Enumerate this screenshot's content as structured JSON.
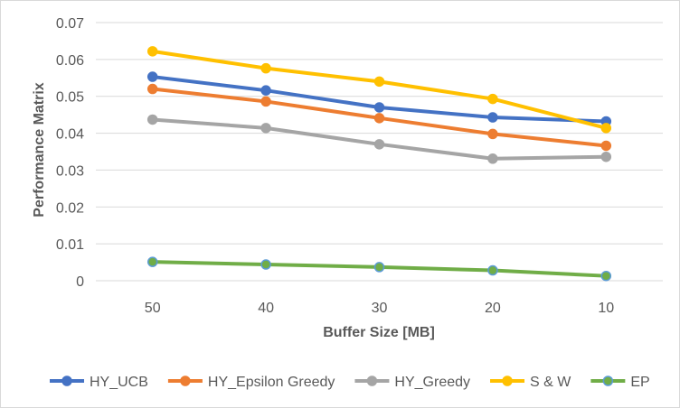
{
  "chart_data": {
    "type": "line",
    "title": "",
    "xlabel": "Buffer Size [MB]",
    "ylabel": "Performance Matrix",
    "categories": [
      "50",
      "40",
      "30",
      "20",
      "10"
    ],
    "ylim": [
      0,
      0.07
    ],
    "yticks": [
      "0",
      "0.01",
      "0.02",
      "0.03",
      "0.04",
      "0.05",
      "0.06",
      "0.07"
    ],
    "grid": true,
    "legend_position": "bottom",
    "series": [
      {
        "name": "HY_UCB",
        "color": "#4472C4",
        "values": [
          0.0553,
          0.0516,
          0.047,
          0.0443,
          0.0432
        ]
      },
      {
        "name": "HY_Epsilon Greedy",
        "color": "#ED7D31",
        "values": [
          0.052,
          0.0486,
          0.0441,
          0.0398,
          0.0366
        ]
      },
      {
        "name": "HY_Greedy",
        "color": "#A5A5A5",
        "values": [
          0.0437,
          0.0414,
          0.037,
          0.0331,
          0.0336
        ]
      },
      {
        "name": "S & W",
        "color": "#FFC000",
        "values": [
          0.0622,
          0.0576,
          0.054,
          0.0493,
          0.0414
        ]
      },
      {
        "name": "EP",
        "color": "#70AD47",
        "marker_color": "#5B9BD5",
        "values": [
          0.0051,
          0.0044,
          0.0037,
          0.0028,
          0.0013
        ]
      }
    ]
  }
}
